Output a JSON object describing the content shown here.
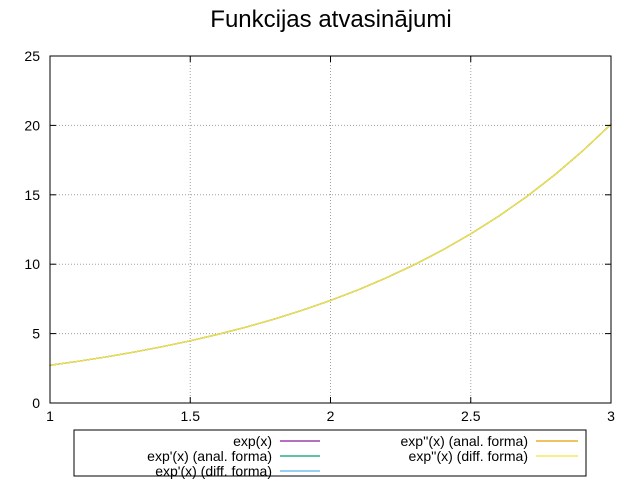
{
  "chart_data": {
    "type": "line",
    "title": "Funkcijas atvasinājumi",
    "xlabel": "",
    "ylabel": "",
    "xlim": [
      1,
      3
    ],
    "ylim": [
      0,
      25
    ],
    "x_ticks": [
      "1",
      "1.5",
      "2",
      "2.5",
      "3"
    ],
    "y_ticks": [
      "0",
      "5",
      "10",
      "15",
      "20",
      "25"
    ],
    "grid": true,
    "legend_position": "bottom",
    "x": [
      1.0,
      1.1,
      1.2,
      1.3,
      1.4,
      1.5,
      1.6,
      1.7,
      1.8,
      1.9,
      2.0,
      2.1,
      2.2,
      2.3,
      2.4,
      2.5,
      2.6,
      2.7,
      2.8,
      2.9,
      3.0
    ],
    "series": [
      {
        "name": "exp(x)",
        "color": "#8b1a9b",
        "values": [
          2.718,
          3.004,
          3.32,
          3.669,
          4.055,
          4.482,
          4.953,
          5.474,
          6.05,
          6.686,
          7.389,
          8.166,
          9.025,
          9.974,
          11.023,
          12.182,
          13.464,
          14.88,
          16.445,
          18.174,
          20.086
        ]
      },
      {
        "name": "exp'(x) (anal. forma)",
        "color": "#009e73",
        "values": [
          2.718,
          3.004,
          3.32,
          3.669,
          4.055,
          4.482,
          4.953,
          5.474,
          6.05,
          6.686,
          7.389,
          8.166,
          9.025,
          9.974,
          11.023,
          12.182,
          13.464,
          14.88,
          16.445,
          18.174,
          20.086
        ]
      },
      {
        "name": "exp'(x) (diff. forma)",
        "color": "#56b4e9",
        "values": [
          2.718,
          3.004,
          3.32,
          3.669,
          4.055,
          4.482,
          4.953,
          5.474,
          6.05,
          6.686,
          7.389,
          8.166,
          9.025,
          9.974,
          11.023,
          12.182,
          13.464,
          14.88,
          16.445,
          18.174,
          20.086
        ]
      },
      {
        "name": "exp''(x) (anal. forma)",
        "color": "#e69f00",
        "values": [
          2.718,
          3.004,
          3.32,
          3.669,
          4.055,
          4.482,
          4.953,
          5.474,
          6.05,
          6.686,
          7.389,
          8.166,
          9.025,
          9.974,
          11.023,
          12.182,
          13.464,
          14.88,
          16.445,
          18.174,
          20.086
        ]
      },
      {
        "name": "exp''(x) (diff. forma)",
        "color": "#f0e442",
        "values": [
          2.718,
          3.004,
          3.32,
          3.669,
          4.055,
          4.482,
          4.953,
          5.474,
          6.05,
          6.686,
          7.389,
          8.166,
          9.025,
          9.974,
          11.023,
          12.182,
          13.464,
          14.88,
          16.445,
          18.174,
          20.086
        ]
      }
    ]
  }
}
